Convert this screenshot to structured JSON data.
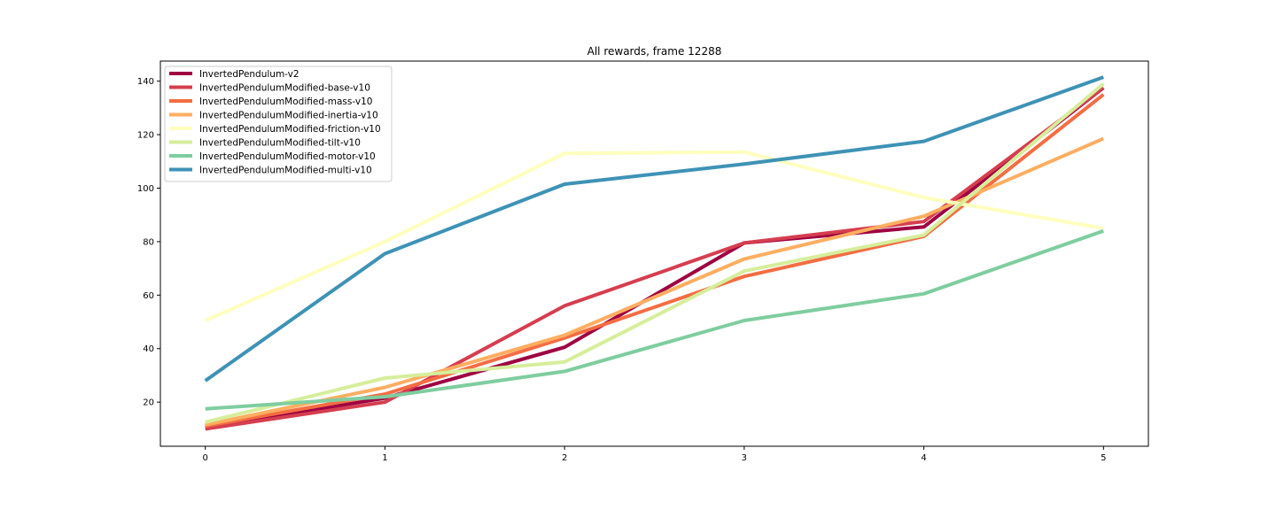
{
  "chart_data": {
    "type": "line",
    "title": "All rewards, frame 12288",
    "xlabel": "",
    "ylabel": "",
    "x": [
      0,
      1,
      2,
      3,
      4,
      5
    ],
    "xticks": [
      "0",
      "1",
      "2",
      "3",
      "4",
      "5"
    ],
    "yticks": [
      "20",
      "40",
      "60",
      "80",
      "100",
      "120",
      "140"
    ],
    "xlim": [
      -0.25,
      5.25
    ],
    "ylim": [
      3.5,
      147.5
    ],
    "grid": false,
    "legend_position": "top-left",
    "series": [
      {
        "name": "InvertedPendulum-v2",
        "color": "#9e0142",
        "values": [
          10.5,
          21.5,
          40.5,
          79.5,
          85.5,
          137.5
        ]
      },
      {
        "name": "InvertedPendulumModified-base-v10",
        "color": "#d53e4f",
        "values": [
          10.0,
          20.0,
          56.0,
          79.5,
          87.5,
          137.5
        ]
      },
      {
        "name": "InvertedPendulumModified-mass-v10",
        "color": "#f46d43",
        "values": [
          11.0,
          23.0,
          44.0,
          67.0,
          82.0,
          135.0
        ]
      },
      {
        "name": "InvertedPendulumModified-inertia-v10",
        "color": "#fdae61",
        "values": [
          11.5,
          25.5,
          45.0,
          73.5,
          89.5,
          118.5
        ]
      },
      {
        "name": "InvertedPendulumModified-friction-v10",
        "color": "#ffffbf",
        "values": [
          50.5,
          80.0,
          113.0,
          113.5,
          96.5,
          85.0
        ]
      },
      {
        "name": "InvertedPendulumModified-tilt-v10",
        "color": "#d6ee9b",
        "values": [
          12.5,
          29.0,
          35.0,
          69.0,
          82.5,
          139.0
        ]
      },
      {
        "name": "InvertedPendulumModified-motor-v10",
        "color": "#7fcd9f",
        "values": [
          17.5,
          22.0,
          31.5,
          50.5,
          60.5,
          84.0
        ]
      },
      {
        "name": "InvertedPendulumModified-multi-v10",
        "color": "#3e92b5",
        "values": [
          28.0,
          75.5,
          101.5,
          109.0,
          117.5,
          141.5
        ]
      }
    ]
  }
}
